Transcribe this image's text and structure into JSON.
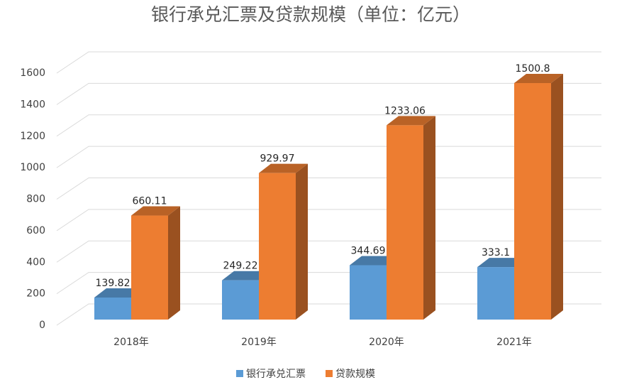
{
  "chart_data": {
    "type": "bar3d",
    "title": "银行承兑汇票及贷款规模（单位：亿元）",
    "categories": [
      "2018年",
      "2019年",
      "2020年",
      "2021年"
    ],
    "series": [
      {
        "name": "银行承兑汇票",
        "color": "#5b9bd5",
        "values": [
          139.82,
          249.22,
          344.69,
          333.1
        ]
      },
      {
        "name": "贷款规模",
        "color": "#ed7d31",
        "values": [
          660.11,
          929.97,
          1233.06,
          1500.8
        ]
      }
    ],
    "ylim": [
      0,
      1600
    ],
    "yticks": [
      0,
      200,
      400,
      600,
      800,
      1000,
      1200,
      1400,
      1600
    ],
    "grid": true,
    "legend": "bottom"
  }
}
